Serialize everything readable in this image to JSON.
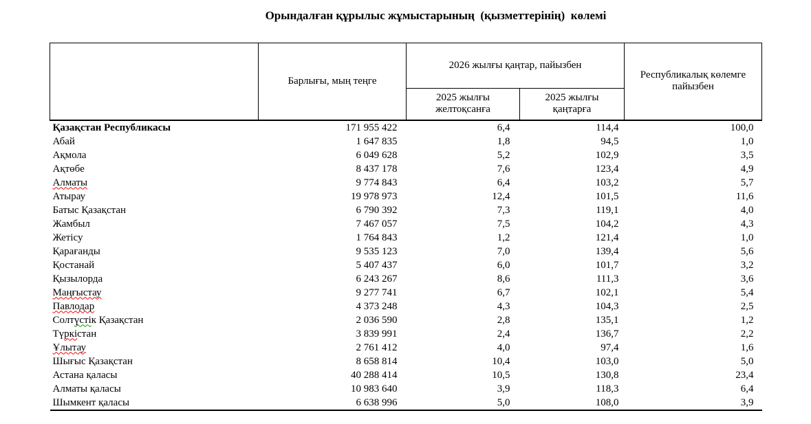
{
  "title": "Орындалған құрылыс жұмыстарының  (қызметтерінің)  көлемі",
  "colors": {
    "text": "#000000",
    "border": "#000000",
    "spellcheck_red": "#ff0000",
    "spellcheck_green": "#00a000"
  },
  "table": {
    "headers": {
      "region": "",
      "total": "Барлығы, мың теңге",
      "group": "2026 жылғы қаңтар, пайызбен",
      "sub1": "2025 жылғы желтоқсанға",
      "sub2": "2025 жылғы қаңтарға",
      "republic": "Республикалық көлемге пайызбен"
    },
    "rows": [
      {
        "name": [
          [
            "Қазақстан Республикасы",
            null
          ]
        ],
        "bold": true,
        "values": [
          "171 955 422",
          "6,4",
          "114,4",
          "100,0"
        ]
      },
      {
        "name": [
          [
            "Абай",
            null
          ]
        ],
        "values": [
          "1 647 835",
          "1,8",
          "94,5",
          "1,0"
        ]
      },
      {
        "name": [
          [
            "Ақмола",
            null
          ]
        ],
        "values": [
          "6 049 628",
          "5,2",
          "102,9",
          "3,5"
        ]
      },
      {
        "name": [
          [
            "Ақтөбе",
            null
          ]
        ],
        "values": [
          "8 437 178",
          "7,6",
          "123,4",
          "4,9"
        ]
      },
      {
        "name": [
          [
            "Алматы",
            "red"
          ]
        ],
        "values": [
          "9 774 843",
          "6,4",
          "103,2",
          "5,7"
        ]
      },
      {
        "name": [
          [
            "Атырау",
            null
          ]
        ],
        "values": [
          "19 978 973",
          "12,4",
          "101,5",
          "11,6"
        ]
      },
      {
        "name": [
          [
            "Батыс Қазақстан",
            null
          ]
        ],
        "values": [
          "6 790 392",
          "7,3",
          "119,1",
          "4,0"
        ]
      },
      {
        "name": [
          [
            "Жамбыл",
            null
          ]
        ],
        "values": [
          "7 467 057",
          "7,5",
          "104,2",
          "4,3"
        ]
      },
      {
        "name": [
          [
            "Жетісу",
            null
          ]
        ],
        "values": [
          "1 764 843",
          "1,2",
          "121,4",
          "1,0"
        ]
      },
      {
        "name": [
          [
            "Қарағанды",
            null
          ]
        ],
        "values": [
          "9 535 123",
          "7,0",
          "139,4",
          "5,6"
        ]
      },
      {
        "name": [
          [
            "Қостанай",
            null
          ]
        ],
        "values": [
          "5 407 437",
          "6,0",
          "101,7",
          "3,2"
        ]
      },
      {
        "name": [
          [
            "Қызылорда",
            null
          ]
        ],
        "values": [
          "6 243 267",
          "8,6",
          "111,3",
          "3,6"
        ]
      },
      {
        "name": [
          [
            "Маңғыстау",
            "red"
          ]
        ],
        "values": [
          "9 277 741",
          "6,7",
          "102,1",
          "5,4"
        ]
      },
      {
        "name": [
          [
            "Павлодар",
            "red"
          ]
        ],
        "values": [
          "4 373 248",
          "4,3",
          "104,3",
          "2,5"
        ]
      },
      {
        "name": [
          [
            "Солт",
            null
          ],
          [
            "үсті",
            "green"
          ],
          [
            "к Қазақстан",
            null
          ]
        ],
        "values": [
          "2 036 590",
          "2,8",
          "135,1",
          "1,2"
        ]
      },
      {
        "name": [
          [
            "Тү",
            null
          ],
          [
            "ркі",
            "red"
          ],
          [
            "стан",
            null
          ]
        ],
        "values": [
          "3 839 991",
          "2,4",
          "136,7",
          "2,2"
        ]
      },
      {
        "name": [
          [
            "Ұлытау",
            "red"
          ]
        ],
        "values": [
          "2 761 412",
          "4,0",
          "97,4",
          "1,6"
        ]
      },
      {
        "name": [
          [
            "Шығыс Қазақстан",
            null
          ]
        ],
        "values": [
          "8 658 814",
          "10,4",
          "103,0",
          "5,0"
        ]
      },
      {
        "name": [
          [
            "Астана қаласы",
            null
          ]
        ],
        "values": [
          "40 288 414",
          "10,5",
          "130,8",
          "23,4"
        ]
      },
      {
        "name": [
          [
            "Алматы қаласы",
            null
          ]
        ],
        "values": [
          "10 983 640",
          "3,9",
          "118,3",
          "6,4"
        ]
      },
      {
        "name": [
          [
            "Шымкент қаласы",
            null
          ]
        ],
        "values": [
          "6 638 996",
          "5,0",
          "108,0",
          "3,9"
        ]
      }
    ]
  }
}
